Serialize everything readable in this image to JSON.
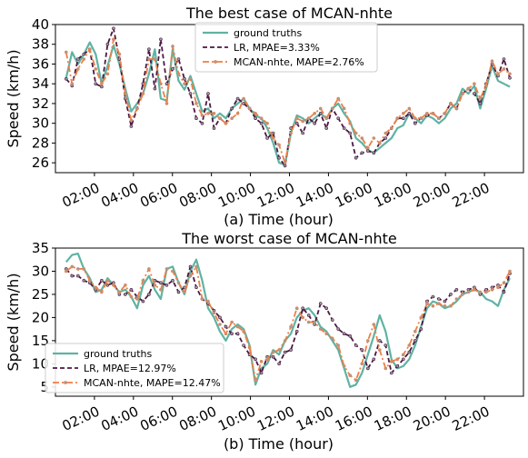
{
  "colors": {
    "ground": "#5fb3a3",
    "lr": "#4a1942",
    "mcan": "#ee7f45",
    "marker_fill": "#9e9e9e"
  },
  "chart_data": [
    {
      "type": "line",
      "title": "The best case of MCAN-nhte",
      "ylabel": "Speed (km/h)",
      "xlabel": "(a) Time (hour)",
      "xlim": [
        0,
        24
      ],
      "ylim": [
        25,
        40
      ],
      "yticks": [
        26,
        28,
        30,
        32,
        34,
        36,
        38,
        40
      ],
      "xticks": [
        2,
        4,
        6,
        8,
        10,
        12,
        14,
        16,
        18,
        20,
        22
      ],
      "xtick_labels": [
        "02:00",
        "04:00",
        "06:00",
        "08:00",
        "10:00",
        "12:00",
        "14:00",
        "16:00",
        "18:00",
        "20:00",
        "22:00"
      ],
      "legend": "top-center",
      "series": [
        {
          "name": "ground truths",
          "style": "solid",
          "values": [
            34.6,
            37.2,
            36.0,
            37.0,
            38.2,
            37.0,
            34.0,
            35.8,
            37.9,
            36.0,
            33.5,
            31.2,
            32.0,
            33.0,
            35.0,
            37.5,
            32.5,
            32.3,
            37.5,
            34.3,
            33.4,
            34.8,
            33.0,
            31.2,
            31.5,
            30.5,
            31.0,
            30.5,
            31.5,
            32.0,
            32.5,
            31.5,
            30.8,
            30.5,
            29.5,
            28.0,
            26.0,
            25.8,
            29.0,
            30.8,
            30.5,
            30.0,
            30.5,
            31.0,
            30.5,
            31.5,
            32.0,
            31.0,
            30.2,
            28.5,
            28.0,
            27.3,
            27.0,
            27.5,
            28.0,
            28.5,
            29.5,
            29.8,
            31.0,
            30.5,
            30.0,
            30.8,
            30.5,
            30.0,
            30.5,
            31.5,
            32.0,
            33.5,
            33.0,
            33.8,
            31.5,
            33.5,
            35.8,
            34.3,
            34.0,
            33.7
          ]
        },
        {
          "name": "LR, MPAE=3.33%",
          "style": "dashed",
          "values": [
            34.5,
            33.8,
            36.5,
            37.0,
            37.5,
            34.0,
            33.7,
            38.0,
            39.6,
            36.5,
            32.5,
            29.7,
            31.5,
            34.0,
            37.5,
            33.5,
            38.5,
            34.0,
            35.5,
            36.5,
            34.5,
            33.0,
            30.5,
            30.0,
            33.0,
            29.5,
            30.5,
            30.0,
            31.5,
            32.5,
            32.0,
            31.5,
            30.5,
            30.0,
            28.5,
            29.0,
            26.5,
            25.7,
            29.5,
            30.0,
            29.0,
            30.5,
            30.0,
            31.0,
            29.5,
            31.5,
            30.5,
            29.5,
            29.0,
            26.5,
            27.0,
            27.2,
            27.0,
            28.0,
            28.5,
            29.5,
            30.5,
            30.5,
            31.0,
            30.0,
            30.5,
            30.8,
            31.0,
            30.5,
            31.0,
            32.0,
            31.5,
            33.0,
            33.5,
            33.0,
            32.0,
            34.0,
            36.0,
            34.8,
            36.5,
            34.6
          ]
        },
        {
          "name": "MCAN-nhte, MAPE=2.76%",
          "style": "dashdot",
          "values": [
            37.2,
            34.0,
            35.5,
            36.5,
            37.5,
            35.5,
            34.0,
            35.0,
            38.5,
            37.0,
            33.0,
            30.3,
            31.5,
            33.0,
            36.5,
            36.5,
            34.0,
            32.0,
            37.8,
            35.0,
            34.0,
            34.5,
            32.0,
            30.8,
            31.0,
            31.0,
            30.5,
            30.0,
            30.5,
            31.0,
            32.5,
            31.5,
            31.0,
            30.5,
            30.0,
            28.5,
            27.8,
            26.0,
            29.0,
            30.5,
            30.2,
            30.5,
            31.0,
            31.5,
            30.5,
            31.5,
            32.5,
            31.5,
            30.0,
            29.0,
            28.5,
            27.5,
            28.5,
            28.0,
            29.0,
            29.5,
            30.5,
            31.0,
            31.5,
            30.5,
            30.5,
            31.0,
            31.0,
            30.5,
            31.0,
            32.0,
            31.5,
            33.0,
            33.5,
            34.0,
            32.5,
            33.8,
            36.3,
            35.0,
            35.5,
            35.0
          ]
        }
      ]
    },
    {
      "type": "line",
      "title": "The worst case of MCAN-nhte",
      "ylabel": "Speed (km/h)",
      "xlabel": "(b) Time (hour)",
      "xlim": [
        0,
        24
      ],
      "ylim": [
        3,
        35
      ],
      "yticks": [
        5,
        10,
        15,
        20,
        25,
        30,
        35
      ],
      "xticks": [
        2,
        4,
        6,
        8,
        10,
        12,
        14,
        16,
        18,
        20,
        22
      ],
      "xtick_labels": [
        "02:00",
        "04:00",
        "06:00",
        "08:00",
        "10:00",
        "12:00",
        "14:00",
        "16:00",
        "18:00",
        "20:00",
        "22:00"
      ],
      "legend": "lower-left",
      "series": [
        {
          "name": "ground truths",
          "style": "solid",
          "values": [
            32.0,
            33.5,
            33.8,
            30.5,
            28.5,
            25.5,
            26.0,
            28.5,
            27.0,
            25.5,
            26.0,
            24.5,
            22.0,
            27.0,
            29.0,
            26.0,
            24.0,
            30.5,
            31.0,
            27.5,
            25.0,
            30.0,
            32.5,
            28.0,
            22.0,
            20.0,
            17.0,
            15.0,
            17.5,
            18.5,
            17.5,
            14.0,
            5.5,
            9.0,
            10.0,
            13.0,
            12.0,
            15.0,
            16.5,
            20.0,
            21.5,
            22.0,
            20.5,
            18.0,
            17.0,
            15.0,
            13.0,
            9.0,
            5.0,
            5.5,
            8.0,
            12.0,
            16.0,
            20.5,
            17.0,
            11.0,
            9.0,
            9.5,
            11.0,
            14.0,
            18.0,
            22.0,
            23.5,
            23.0,
            22.0,
            22.5,
            23.5,
            25.0,
            25.5,
            26.0,
            25.5,
            24.0,
            23.5,
            22.5,
            26.0,
            28.5
          ]
        },
        {
          "name": "LR, MPAE=12.97%",
          "style": "dashed",
          "values": [
            30.5,
            29.0,
            29.0,
            28.0,
            27.5,
            26.0,
            28.0,
            27.0,
            27.5,
            25.0,
            25.0,
            26.0,
            24.5,
            23.5,
            25.0,
            28.0,
            27.5,
            27.0,
            28.0,
            25.5,
            26.5,
            31.0,
            26.5,
            24.0,
            23.0,
            21.5,
            20.0,
            18.0,
            16.5,
            16.5,
            14.0,
            12.0,
            11.0,
            8.0,
            11.5,
            11.5,
            10.0,
            12.5,
            13.0,
            17.0,
            22.0,
            20.5,
            18.5,
            23.0,
            22.0,
            19.5,
            17.5,
            16.5,
            16.0,
            14.0,
            13.0,
            9.0,
            11.0,
            15.0,
            14.0,
            8.0,
            9.5,
            11.0,
            12.5,
            15.0,
            17.5,
            23.5,
            24.5,
            24.0,
            23.5,
            25.0,
            26.0,
            25.5,
            26.0,
            26.5,
            25.0,
            26.0,
            26.5,
            27.0,
            25.5,
            29.5
          ]
        },
        {
          "name": "MCAN-nhte, MAPE=12.47%",
          "style": "dashdot",
          "values": [
            30.0,
            31.0,
            30.5,
            30.5,
            28.0,
            26.5,
            25.5,
            28.0,
            27.0,
            25.5,
            27.0,
            24.5,
            24.0,
            28.0,
            30.5,
            27.0,
            26.0,
            30.5,
            30.0,
            27.5,
            25.5,
            29.0,
            31.0,
            24.0,
            23.5,
            21.0,
            18.5,
            16.5,
            19.0,
            18.0,
            17.0,
            13.5,
            6.5,
            10.5,
            11.0,
            12.5,
            13.0,
            15.0,
            18.0,
            22.0,
            20.0,
            19.0,
            19.0,
            17.5,
            16.5,
            15.5,
            14.0,
            9.5,
            7.5,
            6.5,
            10.0,
            15.0,
            18.5,
            13.0,
            9.0,
            10.5,
            11.0,
            12.0,
            14.0,
            17.0,
            20.0,
            23.0,
            22.5,
            23.0,
            22.5,
            22.5,
            24.0,
            25.0,
            25.5,
            26.0,
            25.5,
            25.5,
            26.0,
            26.5,
            27.5,
            30.0
          ]
        }
      ]
    }
  ]
}
